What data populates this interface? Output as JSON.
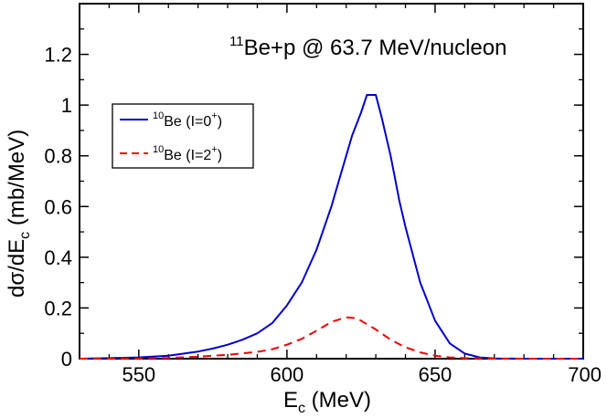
{
  "chart_data": {
    "type": "line",
    "annotation": {
      "prefix_sup": "11",
      "text": "Be+p @ 63.7 MeV/nucleon"
    },
    "xlabel": {
      "main": "E",
      "sub": "c",
      "rest": " (MeV)"
    },
    "ylabel": {
      "pre": "dσ/dE",
      "sub": "c",
      "post": " (mb/MeV)"
    },
    "xlim": [
      530,
      700
    ],
    "ylim": [
      0,
      1.4
    ],
    "xticks": [
      550,
      600,
      650,
      700
    ],
    "xtick_labels": [
      "550",
      "600",
      "650",
      "700"
    ],
    "yticks": [
      0,
      0.2,
      0.4,
      0.6,
      0.8,
      1.0,
      1.2
    ],
    "ytick_labels": [
      "0",
      "0.2",
      "0.4",
      "0.6",
      "0.8",
      "1",
      "1.2"
    ],
    "legend_position": "upper-left",
    "grid": false,
    "series": [
      {
        "legend": {
          "sup": "10",
          "text": "Be (I=0",
          "state_sup": "+",
          "close": ")"
        },
        "color": "#0000cc",
        "style": "solid",
        "x": [
          530,
          540,
          550,
          560,
          570,
          575,
          580,
          585,
          590,
          595,
          600,
          605,
          610,
          615,
          618,
          620,
          622,
          625,
          627,
          628,
          630,
          632,
          635,
          638,
          640,
          645,
          650,
          655,
          660,
          665,
          670,
          680,
          690,
          700
        ],
        "y": [
          0.0,
          0.002,
          0.005,
          0.012,
          0.028,
          0.04,
          0.055,
          0.075,
          0.1,
          0.14,
          0.21,
          0.3,
          0.43,
          0.6,
          0.72,
          0.8,
          0.88,
          0.97,
          1.04,
          1.04,
          1.04,
          0.95,
          0.8,
          0.62,
          0.52,
          0.3,
          0.15,
          0.06,
          0.02,
          0.005,
          0.001,
          0.0,
          0.0,
          0.0
        ]
      },
      {
        "legend": {
          "sup": "10",
          "text": "Be (I=2",
          "state_sup": "+",
          "close": ")"
        },
        "color": "#ee0000",
        "style": "dashed",
        "x": [
          530,
          550,
          560,
          570,
          580,
          590,
          595,
          600,
          605,
          610,
          615,
          620,
          623,
          625,
          630,
          635,
          640,
          645,
          650,
          655,
          660,
          670,
          680,
          700
        ],
        "y": [
          0.0,
          0.001,
          0.003,
          0.008,
          0.015,
          0.027,
          0.037,
          0.055,
          0.078,
          0.11,
          0.145,
          0.163,
          0.16,
          0.15,
          0.115,
          0.075,
          0.045,
          0.025,
          0.012,
          0.005,
          0.002,
          0.0,
          0.0,
          0.0
        ]
      }
    ]
  }
}
